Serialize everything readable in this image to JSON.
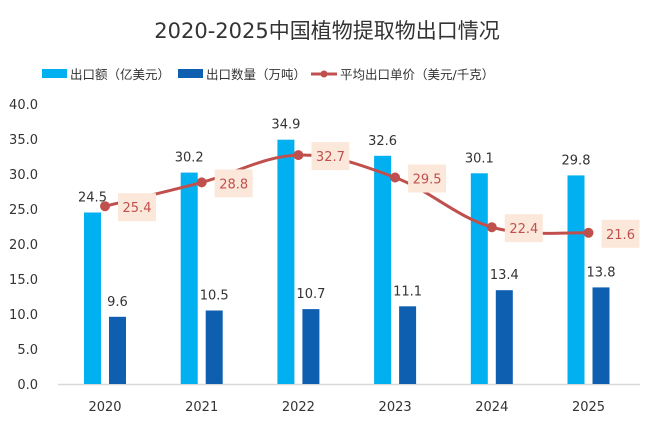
{
  "chart_data": {
    "type": "bar",
    "title": "2020-2025中国植物提取物出口情况",
    "categories": [
      "2020",
      "2021",
      "2022",
      "2023",
      "2024",
      "2025"
    ],
    "series": [
      {
        "name": "出口额（亿美元）",
        "type": "bar",
        "color": "#00b0f0",
        "values": [
          24.5,
          30.2,
          34.9,
          32.6,
          30.1,
          29.8
        ]
      },
      {
        "name": "出口数量（万吨）",
        "type": "bar",
        "color": "#0f5fb0",
        "values": [
          9.6,
          10.5,
          10.7,
          11.1,
          13.4,
          13.8
        ]
      },
      {
        "name": "平均出口单价（美元/千克）",
        "type": "line",
        "color": "#c0504d",
        "label_bg": "#fce8da",
        "values": [
          25.4,
          28.8,
          32.7,
          29.5,
          22.4,
          21.6
        ]
      }
    ],
    "xlabel": "",
    "ylabel": "",
    "ylim": [
      0,
      40
    ],
    "yticks": [
      "0.0",
      "5.0",
      "10.0",
      "15.0",
      "20.0",
      "25.0",
      "30.0",
      "35.0",
      "40.0"
    ],
    "grid": false,
    "legend_position": "top"
  }
}
